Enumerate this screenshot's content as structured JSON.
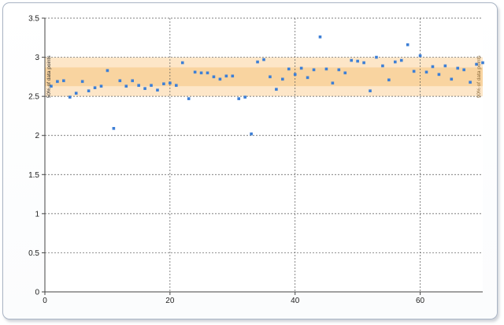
{
  "chart_data": {
    "type": "scatter",
    "title": "",
    "xlabel": "",
    "ylabel": "",
    "xlim": [
      0,
      70
    ],
    "ylim": [
      0,
      3.5
    ],
    "x_ticks": [
      0,
      20,
      40,
      60
    ],
    "y_ticks": [
      0,
      0.5,
      1,
      1.5,
      2,
      2.5,
      3,
      3.5
    ],
    "x_tick_labels": [
      "0",
      "20",
      "40",
      "60"
    ],
    "y_tick_labels": [
      "0",
      "0.5",
      "1",
      "1.5",
      "2",
      "2.5",
      "3",
      "3.5"
    ],
    "grid": true,
    "colors": {
      "point": "#3d7fd6",
      "band_outer": "#fde6c8",
      "band_inner": "#f9d4a0",
      "grid": "#555555"
    },
    "bands": [
      {
        "label": "90% of data points",
        "low": 2.5,
        "high": 3.0
      },
      {
        "label": "50% of data points",
        "low": 2.63,
        "high": 2.87
      }
    ],
    "series": [
      {
        "x": [
          1,
          2,
          3,
          4,
          5,
          6,
          7,
          8,
          9,
          10,
          11,
          12,
          13,
          14,
          15,
          16,
          17,
          18,
          19,
          20,
          21,
          22,
          23,
          24,
          25,
          26,
          27,
          28,
          29,
          30,
          31,
          32,
          33,
          34,
          35,
          36,
          37,
          38,
          39,
          40,
          41,
          42,
          43,
          44,
          45,
          46,
          47,
          48,
          49,
          50,
          51,
          52,
          53,
          54,
          55,
          56,
          57,
          58,
          59,
          60,
          61,
          62,
          63,
          64,
          65,
          66,
          67,
          68,
          69,
          70
        ],
        "values": [
          2.63,
          2.69,
          2.7,
          2.49,
          2.54,
          2.69,
          2.57,
          2.61,
          2.63,
          2.83,
          2.09,
          2.7,
          2.63,
          2.7,
          2.64,
          2.6,
          2.64,
          2.58,
          2.66,
          2.67,
          2.64,
          2.93,
          2.47,
          2.81,
          2.8,
          2.8,
          2.75,
          2.72,
          2.76,
          2.76,
          2.47,
          2.49,
          2.02,
          2.94,
          2.97,
          2.75,
          2.59,
          2.72,
          2.85,
          2.78,
          2.86,
          2.74,
          2.84,
          3.26,
          2.85,
          2.67,
          2.84,
          2.8,
          2.96,
          2.95,
          2.93,
          2.57,
          3.0,
          2.89,
          2.71,
          2.94,
          2.96,
          3.16,
          2.82,
          3.02,
          2.81,
          2.88,
          2.78,
          2.89,
          2.72,
          2.86,
          2.84,
          2.68,
          2.91,
          2.93
        ]
      }
    ]
  }
}
